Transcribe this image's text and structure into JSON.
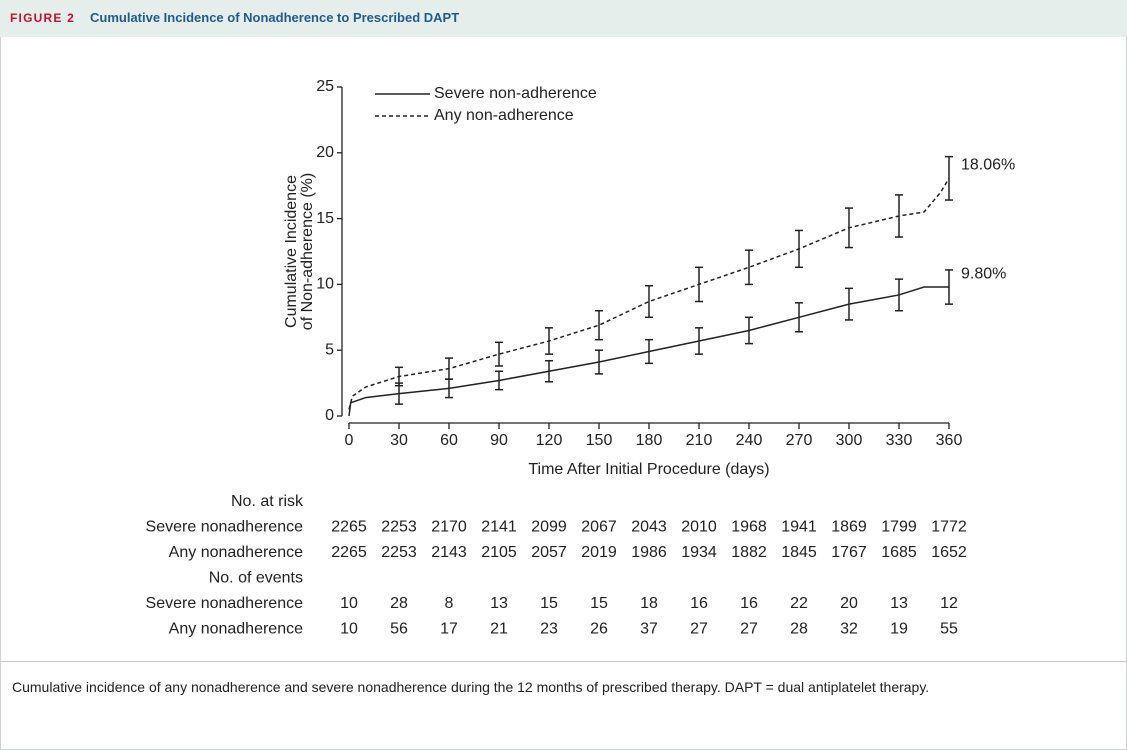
{
  "figure_label": "FIGURE 2",
  "figure_title": "Cumulative Incidence of Nonadherence to Prescribed DAPT",
  "chart_data": {
    "type": "line",
    "ylabel": [
      "Cumulative Incidence",
      "of Non-adherence (%)"
    ],
    "xlabel": "Time After Initial Procedure (days)",
    "xlim": [
      0,
      360
    ],
    "xticks": [
      0,
      30,
      60,
      90,
      120,
      150,
      180,
      210,
      240,
      270,
      300,
      330,
      360
    ],
    "ylim": [
      0,
      25
    ],
    "yticks": [
      0,
      5,
      10,
      15,
      20,
      25
    ],
    "legend": "top-left",
    "series": [
      {
        "name": "Severe non-adherence",
        "color": "#222222",
        "dash": false,
        "x": [
          0,
          1,
          10,
          30,
          60,
          90,
          120,
          150,
          180,
          210,
          240,
          270,
          300,
          330,
          345,
          360
        ],
        "values": [
          0,
          1.0,
          1.4,
          1.7,
          2.1,
          2.7,
          3.4,
          4.1,
          4.9,
          5.7,
          6.5,
          7.5,
          8.5,
          9.2,
          9.8,
          9.8
        ],
        "error_bars": {
          "x": [
            30,
            60,
            90,
            120,
            150,
            180,
            210,
            240,
            270,
            300,
            330,
            360
          ],
          "values": [
            1.7,
            2.1,
            2.7,
            3.4,
            4.1,
            4.9,
            5.7,
            6.5,
            7.5,
            8.5,
            9.2,
            9.8
          ],
          "errors": [
            0.8,
            0.7,
            0.7,
            0.8,
            0.9,
            0.9,
            1.0,
            1.0,
            1.1,
            1.2,
            1.2,
            1.3
          ],
          "end_label": "9.80%"
        }
      },
      {
        "name": "Any non-adherence",
        "color": "#222222",
        "dash": true,
        "x": [
          0,
          2,
          10,
          30,
          60,
          90,
          120,
          150,
          180,
          210,
          240,
          270,
          300,
          330,
          345,
          355,
          360
        ],
        "values": [
          0.5,
          1.5,
          2.2,
          3.0,
          3.6,
          4.7,
          5.7,
          6.9,
          8.7,
          10.0,
          11.3,
          12.7,
          14.3,
          15.2,
          15.5,
          17.0,
          18.06
        ],
        "error_bars": {
          "x": [
            30,
            60,
            90,
            120,
            150,
            180,
            210,
            240,
            270,
            300,
            330,
            360
          ],
          "values": [
            3.0,
            3.6,
            4.7,
            5.7,
            6.9,
            8.7,
            10.0,
            11.3,
            12.7,
            14.3,
            15.2,
            18.06
          ],
          "errors": [
            0.7,
            0.8,
            0.9,
            1.0,
            1.1,
            1.2,
            1.3,
            1.3,
            1.4,
            1.5,
            1.6,
            1.65
          ],
          "end_label": "18.06%"
        }
      }
    ]
  },
  "risk_table": {
    "sections": [
      {
        "title": "No. at risk",
        "rows": [
          {
            "label": "Severe nonadherence",
            "values": [
              2265,
              2253,
              2170,
              2141,
              2099,
              2067,
              2043,
              2010,
              1968,
              1941,
              1869,
              1799,
              1772
            ]
          },
          {
            "label": "Any nonadherence",
            "values": [
              2265,
              2253,
              2143,
              2105,
              2057,
              2019,
              1986,
              1934,
              1882,
              1845,
              1767,
              1685,
              1652
            ]
          }
        ]
      },
      {
        "title": "No. of events",
        "rows": [
          {
            "label": "Severe nonadherence",
            "values": [
              10,
              28,
              8,
              13,
              15,
              15,
              18,
              16,
              16,
              22,
              20,
              13,
              12
            ]
          },
          {
            "label": "Any nonadherence",
            "values": [
              10,
              56,
              17,
              21,
              23,
              26,
              37,
              27,
              27,
              28,
              32,
              19,
              55
            ]
          }
        ]
      }
    ]
  },
  "caption": "Cumulative incidence of any nonadherence and severe nonadherence during the 12 months of prescribed therapy. DAPT = dual antiplatelet therapy."
}
